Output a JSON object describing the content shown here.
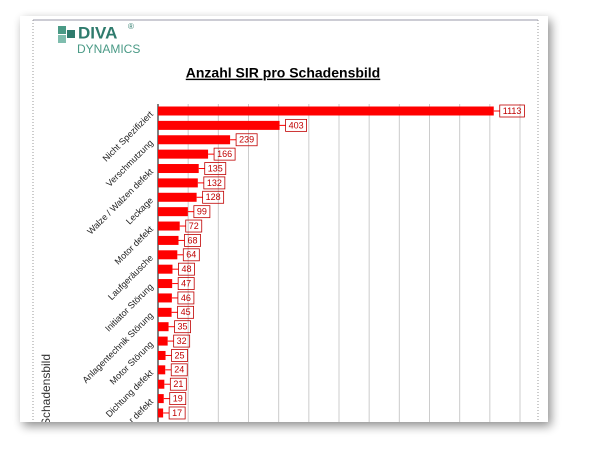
{
  "logo": {
    "name": "DIVA",
    "mark": "®",
    "sub": "DYNAMICS"
  },
  "chart_data": {
    "type": "bar",
    "orientation": "horizontal",
    "title": "Anzahl SIR pro Schadensbild",
    "y_label": "Schadensbild",
    "categories": [
      "Nicht Spezifiziert",
      null,
      "Verschmutzung",
      null,
      "Walze / Walzen defekt",
      null,
      "Leckage",
      null,
      "Motor defekt",
      null,
      "Laufgeräusche",
      null,
      "Initiator Störung",
      null,
      "Anlagentechnik Störung",
      null,
      "Motor Störung",
      null,
      "Dichtung defekt",
      null,
      "r defekt",
      null
    ],
    "values": [
      1113,
      403,
      239,
      166,
      135,
      132,
      128,
      99,
      72,
      68,
      64,
      48,
      47,
      46,
      45,
      35,
      32,
      25,
      24,
      21,
      19,
      17
    ],
    "color": "#ff0000",
    "xlim": [
      0,
      1200
    ],
    "xticks": [
      0,
      100,
      200,
      300,
      400,
      500,
      600,
      700,
      800,
      900,
      1000,
      1100,
      1200
    ],
    "grid": true
  }
}
